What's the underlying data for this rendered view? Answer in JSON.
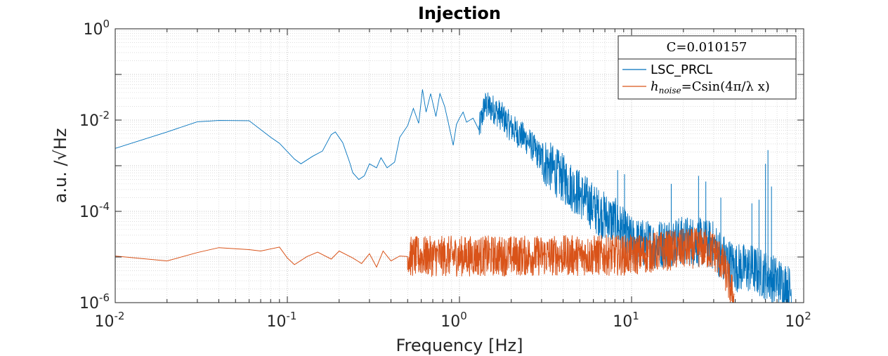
{
  "chart_data": {
    "type": "line",
    "title": "Injection",
    "xlabel": "Frequency [Hz]",
    "ylabel": "a.u. /√Hz",
    "xscale": "log",
    "yscale": "log",
    "xlim": [
      0.01,
      100
    ],
    "ylim": [
      1e-06,
      1
    ],
    "grid": "major and minor, dotted",
    "x_ticks": [
      {
        "base": "10",
        "exp": "-2"
      },
      {
        "base": "10",
        "exp": "-1"
      },
      {
        "base": "10",
        "exp": "0"
      },
      {
        "base": "10",
        "exp": "1"
      },
      {
        "base": "10",
        "exp": "2"
      }
    ],
    "y_ticks": [
      {
        "base": "10",
        "exp": "0"
      },
      {
        "base": "10",
        "exp": "-2"
      },
      {
        "base": "10",
        "exp": "-4"
      },
      {
        "base": "10",
        "exp": "-6"
      }
    ],
    "legend": {
      "placement": "top-right",
      "header": "C=0.010157",
      "entries": [
        {
          "label": "LSC_PRCL",
          "color": "#0072BD"
        },
        {
          "label_main": "h",
          "label_sub": "noise",
          "label_rest": "=Csin(4π/λ x)",
          "color": "#D95319"
        }
      ]
    },
    "series": [
      {
        "name": "LSC_PRCL",
        "color": "#0072BD",
        "noisy_from_x": 1.3,
        "points": [
          [
            0.01,
            0.0024
          ],
          [
            0.02,
            0.0055
          ],
          [
            0.03,
            0.0092
          ],
          [
            0.04,
            0.0098
          ],
          [
            0.06,
            0.0097
          ],
          [
            0.08,
            0.0042
          ],
          [
            0.09,
            0.0031
          ],
          [
            0.11,
            0.0014
          ],
          [
            0.12,
            0.0011
          ],
          [
            0.14,
            0.0016
          ],
          [
            0.16,
            0.0021
          ],
          [
            0.18,
            0.0048
          ],
          [
            0.19,
            0.0055
          ],
          [
            0.21,
            0.0032
          ],
          [
            0.23,
            0.0012
          ],
          [
            0.24,
            0.0007
          ],
          [
            0.26,
            0.0005
          ],
          [
            0.28,
            0.0006
          ],
          [
            0.3,
            0.0011
          ],
          [
            0.33,
            0.0009
          ],
          [
            0.35,
            0.0015
          ],
          [
            0.38,
            0.0009
          ],
          [
            0.42,
            0.0012
          ],
          [
            0.45,
            0.0042
          ],
          [
            0.5,
            0.0075
          ],
          [
            0.54,
            0.018
          ],
          [
            0.58,
            0.0085
          ],
          [
            0.61,
            0.047
          ],
          [
            0.64,
            0.015
          ],
          [
            0.68,
            0.038
          ],
          [
            0.73,
            0.012
          ],
          [
            0.77,
            0.038
          ],
          [
            0.82,
            0.02
          ],
          [
            0.86,
            0.009
          ],
          [
            0.92,
            0.0028
          ],
          [
            0.96,
            0.008
          ],
          [
            1.0,
            0.011
          ],
          [
            1.05,
            0.015
          ],
          [
            1.1,
            0.009
          ],
          [
            1.2,
            0.011
          ],
          [
            1.3,
            0.006
          ],
          [
            1.4,
            0.021
          ],
          [
            1.6,
            0.017
          ],
          [
            1.8,
            0.011
          ],
          [
            2.0,
            0.0068
          ],
          [
            2.5,
            0.0035
          ],
          [
            3.0,
            0.0014
          ],
          [
            4.0,
            0.00052
          ],
          [
            5.0,
            0.00024
          ],
          [
            6.5,
            9.2e-05
          ],
          [
            8.0,
            5.8e-05
          ],
          [
            10.0,
            2.2e-05
          ],
          [
            13.0,
            1.8e-05
          ],
          [
            17.0,
            2.2e-05
          ],
          [
            22.0,
            2.3e-05
          ],
          [
            30.0,
            1.8e-05
          ],
          [
            34.0,
            9.5e-06
          ],
          [
            40.0,
            6e-06
          ],
          [
            50.0,
            5.5e-06
          ],
          [
            60.0,
            4e-06
          ],
          [
            70.0,
            3e-06
          ],
          [
            80.0,
            2.2e-06
          ],
          [
            85.0,
            1.6e-06
          ]
        ],
        "spikes": [
          [
            8.3,
            0.0008
          ],
          [
            9.1,
            0.00065
          ],
          [
            17.0,
            0.0004
          ],
          [
            24.5,
            0.0006
          ],
          [
            27.0,
            0.00045
          ],
          [
            33.0,
            0.0002
          ],
          [
            50.0,
            0.00015
          ],
          [
            55.0,
            0.00018
          ],
          [
            60.0,
            0.0011
          ],
          [
            62.0,
            0.0022
          ],
          [
            65.0,
            0.00035
          ]
        ]
      },
      {
        "name": "h_noise=Csin(4π/λ x)",
        "color": "#D95319",
        "noisy_from_x": 0.5,
        "points": [
          [
            0.01,
            1.05e-05
          ],
          [
            0.02,
            8.2e-06
          ],
          [
            0.03,
            1.25e-05
          ],
          [
            0.04,
            1.6e-05
          ],
          [
            0.06,
            1.45e-05
          ],
          [
            0.07,
            1.35e-05
          ],
          [
            0.09,
            1.65e-05
          ],
          [
            0.1,
            9.5e-06
          ],
          [
            0.11,
            6.8e-06
          ],
          [
            0.13,
            1.02e-05
          ],
          [
            0.15,
            1.28e-05
          ],
          [
            0.18,
            9e-06
          ],
          [
            0.2,
            1.35e-05
          ],
          [
            0.24,
            9.5e-06
          ],
          [
            0.27,
            7.2e-06
          ],
          [
            0.3,
            1.18e-05
          ],
          [
            0.33,
            6e-06
          ],
          [
            0.36,
            1.35e-05
          ],
          [
            0.4,
            8.2e-06
          ],
          [
            0.45,
            1.05e-05
          ],
          [
            0.5,
            1.02e-05
          ],
          [
            1.0,
            1.05e-05
          ],
          [
            2.0,
            1.06e-05
          ],
          [
            5.0,
            1.08e-05
          ],
          [
            10.0,
            1.1e-05
          ],
          [
            15.0,
            1.35e-05
          ],
          [
            20.0,
            1.5e-05
          ],
          [
            25.0,
            1.6e-05
          ],
          [
            30.0,
            1.38e-05
          ],
          [
            33.0,
            8.5e-06
          ],
          [
            36.0,
            3.8e-06
          ],
          [
            38.0,
            1.8e-06
          ],
          [
            39.5,
            1e-06
          ]
        ]
      }
    ]
  }
}
